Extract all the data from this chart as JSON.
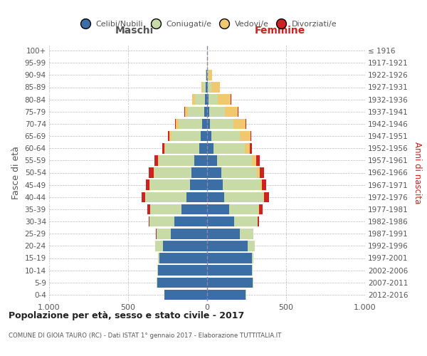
{
  "age_groups": [
    "0-4",
    "5-9",
    "10-14",
    "15-19",
    "20-24",
    "25-29",
    "30-34",
    "35-39",
    "40-44",
    "45-49",
    "50-54",
    "55-59",
    "60-64",
    "65-69",
    "70-74",
    "75-79",
    "80-84",
    "85-89",
    "90-94",
    "95-99",
    "100+"
  ],
  "birth_years": [
    "2012-2016",
    "2007-2011",
    "2002-2006",
    "1997-2001",
    "1992-1996",
    "1987-1991",
    "1982-1986",
    "1977-1981",
    "1972-1976",
    "1967-1971",
    "1962-1966",
    "1957-1961",
    "1952-1956",
    "1947-1951",
    "1942-1946",
    "1937-1941",
    "1932-1936",
    "1927-1931",
    "1922-1926",
    "1917-1921",
    "≤ 1916"
  ],
  "maschi_celibi": [
    270,
    315,
    310,
    300,
    280,
    230,
    205,
    160,
    130,
    110,
    100,
    80,
    50,
    40,
    30,
    20,
    15,
    8,
    3,
    1,
    1
  ],
  "maschi_coniugati": [
    2,
    3,
    5,
    10,
    50,
    90,
    160,
    200,
    260,
    250,
    235,
    225,
    215,
    185,
    150,
    100,
    60,
    18,
    5,
    1,
    0
  ],
  "maschi_vedovi": [
    0,
    0,
    0,
    0,
    0,
    1,
    1,
    2,
    4,
    5,
    5,
    5,
    6,
    12,
    18,
    18,
    20,
    12,
    2,
    0,
    0
  ],
  "maschi_divorziati": [
    0,
    0,
    0,
    0,
    1,
    3,
    5,
    18,
    22,
    22,
    28,
    22,
    15,
    10,
    5,
    5,
    0,
    0,
    0,
    0,
    0
  ],
  "femmine_nubili": [
    245,
    290,
    285,
    285,
    258,
    208,
    172,
    138,
    108,
    98,
    88,
    65,
    42,
    28,
    18,
    12,
    10,
    5,
    2,
    1,
    1
  ],
  "femmine_coniugate": [
    1,
    2,
    5,
    10,
    43,
    83,
    148,
    188,
    248,
    238,
    228,
    218,
    198,
    178,
    148,
    100,
    58,
    22,
    8,
    1,
    0
  ],
  "femmine_vedove": [
    0,
    0,
    0,
    0,
    0,
    1,
    2,
    5,
    6,
    12,
    17,
    27,
    32,
    68,
    78,
    82,
    82,
    52,
    22,
    2,
    0
  ],
  "femmine_divorziate": [
    0,
    0,
    0,
    0,
    1,
    3,
    5,
    22,
    32,
    28,
    28,
    22,
    10,
    5,
    5,
    5,
    5,
    0,
    0,
    0,
    0
  ],
  "colors": {
    "celibi": "#3a6ea5",
    "coniugati": "#c8dba6",
    "vedovi": "#f0c96e",
    "divorziati": "#cc2222"
  },
  "xlim": 1000,
  "title": "Popolazione per età, sesso e stato civile - 2017",
  "subtitle": "COMUNE DI GIOIA TAURO (RC) - Dati ISTAT 1° gennaio 2017 - Elaborazione TUTTITALIA.IT",
  "ylabel_left": "Fasce di età",
  "ylabel_right": "Anni di nascita",
  "header_maschi": "Maschi",
  "header_femmine": "Femmine",
  "legend_labels": [
    "Celibi/Nubili",
    "Coniugati/e",
    "Vedovi/e",
    "Divorziati/e"
  ],
  "bg_color": "#ffffff",
  "grid_color": "#bbbbbb",
  "text_color": "#555555",
  "title_color": "#222222",
  "femmine_label_color": "#cc2222",
  "maschi_label_color": "#555555"
}
